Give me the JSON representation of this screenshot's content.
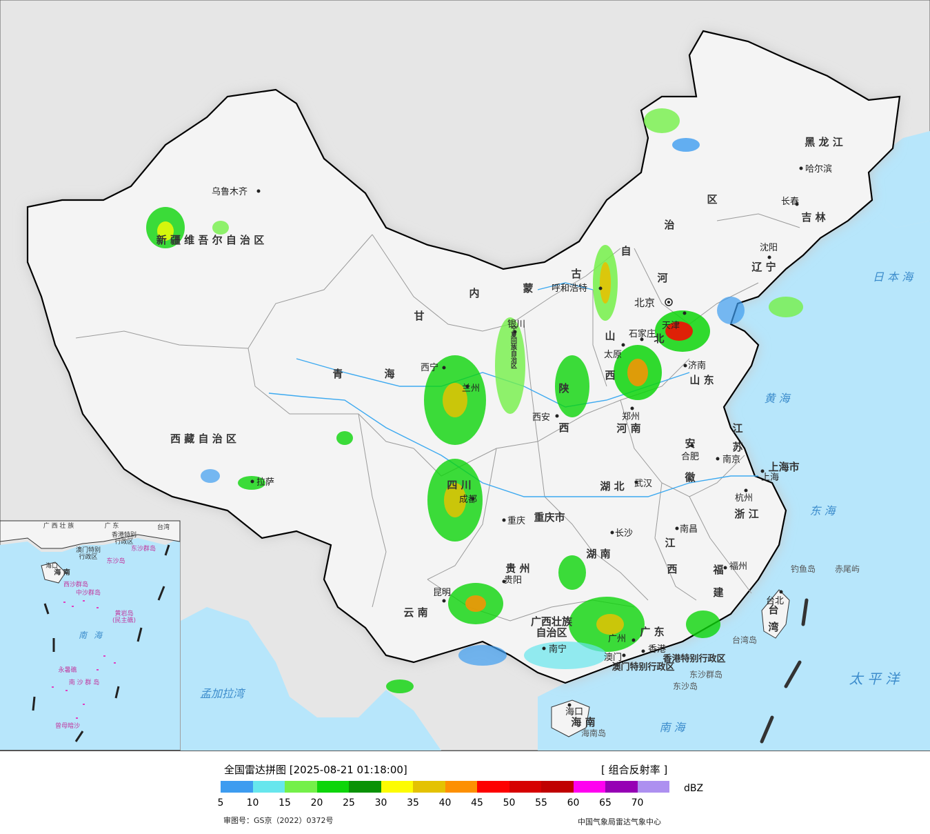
{
  "legend": {
    "title": "全国雷达拼图 [2025-08-21 01:18:00]",
    "product": "[ 组合反射率 ]",
    "unit": "dBZ",
    "colors": [
      "#3d9cf0",
      "#67e6ed",
      "#74f049",
      "#0dd50a",
      "#099205",
      "#fdfc02",
      "#e4c202",
      "#fd9002",
      "#fd0000",
      "#d60000",
      "#c00000",
      "#ff00f0",
      "#9600b4",
      "#ad90f0"
    ],
    "ticks": [
      "5",
      "10",
      "15",
      "20",
      "25",
      "30",
      "35",
      "40",
      "45",
      "50",
      "55",
      "60",
      "65",
      "70"
    ],
    "approval": "审图号：GS京（2022）0372号",
    "credit": "中国气象局雷达气象中心"
  },
  "map": {
    "colors": {
      "sea": "#b7e6fb",
      "land_inside": "#f4f4f4",
      "land_outside": "#e6e6e6",
      "border": "#000000",
      "province_line": "#9a9a9a",
      "river": "#3ca9f0",
      "city": "#222222"
    },
    "province_labels": [
      {
        "text": "新 疆 维 吾 尔 自 治 区",
        "name": "xinjiang"
      },
      {
        "text": "西 藏 自 治 区",
        "name": "xizang"
      },
      {
        "text": "青",
        "name": "qinghai-1"
      },
      {
        "text": "海",
        "name": "qinghai-2"
      },
      {
        "text": "甘",
        "name": "gansu"
      },
      {
        "text": "内",
        "name": "neimenggu-1"
      },
      {
        "text": "蒙",
        "name": "neimenggu-2"
      },
      {
        "text": "古",
        "name": "neimenggu-3"
      },
      {
        "text": "自",
        "name": "neimenggu-4"
      },
      {
        "text": "治",
        "name": "neimenggu-5"
      },
      {
        "text": "区",
        "name": "neimenggu-6"
      },
      {
        "text": "黑 龙 江",
        "name": "heilongjiang"
      },
      {
        "text": "吉 林",
        "name": "jilin"
      },
      {
        "text": "辽 宁",
        "name": "liaoning"
      },
      {
        "text": "河",
        "name": "hebei-1"
      },
      {
        "text": "北",
        "name": "hebei-2"
      },
      {
        "text": "山",
        "name": "shanxi-1"
      },
      {
        "text": "西",
        "name": "shanxi-2"
      },
      {
        "text": "陕",
        "name": "shaanxi-1"
      },
      {
        "text": "西",
        "name": "shaanxi-2"
      },
      {
        "text": "宁夏回族自治区",
        "name": "ningxia"
      },
      {
        "text": "山 东",
        "name": "shandong"
      },
      {
        "text": "河 南",
        "name": "henan"
      },
      {
        "text": "江",
        "name": "jiangsu-1"
      },
      {
        "text": "苏",
        "name": "jiangsu-2"
      },
      {
        "text": "安",
        "name": "anhui-1"
      },
      {
        "text": "徽",
        "name": "anhui-2"
      },
      {
        "text": "上海市",
        "name": "shanghai"
      },
      {
        "text": "浙 江",
        "name": "zhejiang"
      },
      {
        "text": "四 川",
        "name": "sichuan"
      },
      {
        "text": "重庆市",
        "name": "chongqing"
      },
      {
        "text": "湖 北",
        "name": "hubei"
      },
      {
        "text": "湖 南",
        "name": "hunan"
      },
      {
        "text": "江",
        "name": "jiangxi-1"
      },
      {
        "text": "西",
        "name": "jiangxi-2"
      },
      {
        "text": "福",
        "name": "fujian-1"
      },
      {
        "text": "建",
        "name": "fujian-2"
      },
      {
        "text": "贵 州",
        "name": "guizhou"
      },
      {
        "text": "云 南",
        "name": "yunnan"
      },
      {
        "text": "广西壮族",
        "name": "guangxi-1"
      },
      {
        "text": "自治区",
        "name": "guangxi-2"
      },
      {
        "text": "广 东",
        "name": "guangdong"
      },
      {
        "text": "香港特别行政区",
        "name": "hongkong-sar"
      },
      {
        "text": "澳门特别行政区",
        "name": "macau-sar"
      },
      {
        "text": "海 南",
        "name": "hainan"
      },
      {
        "text": "台",
        "name": "taiwan-1"
      },
      {
        "text": "湾",
        "name": "taiwan-2"
      }
    ],
    "cities": [
      {
        "text": "乌鲁木齐",
        "name": "urumqi"
      },
      {
        "text": "拉萨",
        "name": "lhasa"
      },
      {
        "text": "西宁",
        "name": "xining"
      },
      {
        "text": "兰州",
        "name": "lanzhou"
      },
      {
        "text": "银川",
        "name": "yinchuan"
      },
      {
        "text": "呼和浩特",
        "name": "hohhot"
      },
      {
        "text": "哈尔滨",
        "name": "harbin"
      },
      {
        "text": "长春",
        "name": "changchun"
      },
      {
        "text": "沈阳",
        "name": "shenyang"
      },
      {
        "text": "北京",
        "name": "beijing"
      },
      {
        "text": "天津",
        "name": "tianjin"
      },
      {
        "text": "石家庄",
        "name": "shijiazhuang"
      },
      {
        "text": "太原",
        "name": "taiyuan"
      },
      {
        "text": "济南",
        "name": "jinan"
      },
      {
        "text": "西安",
        "name": "xian"
      },
      {
        "text": "郑州",
        "name": "zhengzhou"
      },
      {
        "text": "合肥",
        "name": "hefei"
      },
      {
        "text": "南京",
        "name": "nanjing"
      },
      {
        "text": "上海",
        "name": "shanghai-city"
      },
      {
        "text": "杭州",
        "name": "hangzhou"
      },
      {
        "text": "武汉",
        "name": "wuhan"
      },
      {
        "text": "成都",
        "name": "chengdu"
      },
      {
        "text": "重庆",
        "name": "chongqing-city"
      },
      {
        "text": "长沙",
        "name": "changsha"
      },
      {
        "text": "南昌",
        "name": "nanchang"
      },
      {
        "text": "福州",
        "name": "fuzhou"
      },
      {
        "text": "贵阳",
        "name": "guiyang"
      },
      {
        "text": "昆明",
        "name": "kunming"
      },
      {
        "text": "南宁",
        "name": "nanning"
      },
      {
        "text": "广州",
        "name": "guangzhou"
      },
      {
        "text": "香港",
        "name": "hongkong"
      },
      {
        "text": "澳门",
        "name": "macau"
      },
      {
        "text": "海口",
        "name": "haikou"
      },
      {
        "text": "台北",
        "name": "taipei"
      }
    ],
    "water_labels": [
      {
        "text": "日 本 海",
        "name": "sea-of-japan"
      },
      {
        "text": "黄 海",
        "name": "yellow-sea"
      },
      {
        "text": "东 海",
        "name": "east-china-sea"
      },
      {
        "text": "太 平 洋",
        "name": "pacific-ocean"
      },
      {
        "text": "南 海",
        "name": "south-china-sea"
      },
      {
        "text": "孟加拉湾",
        "name": "bay-of-bengal"
      }
    ],
    "island_labels": [
      {
        "text": "钓鱼岛",
        "name": "diaoyu-island"
      },
      {
        "text": "赤尾屿",
        "name": "chiwei-islet"
      },
      {
        "text": "台湾岛",
        "name": "taiwan-island"
      },
      {
        "text": "东沙群岛",
        "name": "dongsha-islands"
      },
      {
        "text": "东沙岛",
        "name": "dongsha-island"
      },
      {
        "text": "海南岛",
        "name": "hainan-island"
      }
    ],
    "inset": {
      "labels": [
        {
          "text": "广 西 壮 族",
          "name": "inset-guangxi"
        },
        {
          "text": "广 东",
          "name": "inset-guangdong"
        },
        {
          "text": "台湾",
          "name": "inset-taiwan"
        },
        {
          "text": "香港特别",
          "name": "inset-hk-1"
        },
        {
          "text": "行政区",
          "name": "inset-hk-2"
        },
        {
          "text": "澳门特别",
          "name": "inset-mo-1"
        },
        {
          "text": "行政区",
          "name": "inset-mo-2"
        },
        {
          "text": "东沙群岛",
          "name": "inset-dongsha-1"
        },
        {
          "text": "东沙岛",
          "name": "inset-dongsha-2"
        },
        {
          "text": "海口",
          "name": "inset-haikou"
        },
        {
          "text": "海 南",
          "name": "inset-hainan"
        },
        {
          "text": "西沙群岛",
          "name": "inset-xisha"
        },
        {
          "text": "中沙群岛",
          "name": "inset-zhongsha"
        },
        {
          "text": "黄岩岛",
          "name": "inset-huangyan-1"
        },
        {
          "text": "(民主礁)",
          "name": "inset-huangyan-2"
        },
        {
          "text": "南",
          "name": "inset-nanhai-1"
        },
        {
          "text": "海",
          "name": "inset-nanhai-2"
        },
        {
          "text": "永暑礁",
          "name": "inset-yongshu"
        },
        {
          "text": "南 沙 群 岛",
          "name": "inset-nansha"
        },
        {
          "text": "曾母暗沙",
          "name": "inset-zengmu"
        }
      ]
    }
  }
}
